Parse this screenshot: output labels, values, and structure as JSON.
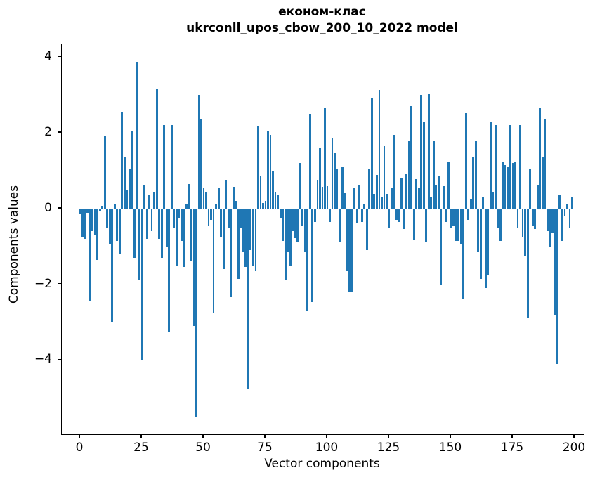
{
  "figure": {
    "title_line1": "економ-клас",
    "title_line2": "ukrconll_upos_cbow_200_10_2022 model",
    "xlabel": "Vector components",
    "ylabel": "Components values",
    "bar_color": "#1f77b4",
    "axis_color": "#000000"
  },
  "chart_data": {
    "type": "bar",
    "title": "економ-клас",
    "subtitle": "ukrconll_upos_cbow_200_10_2022 model",
    "xlabel": "Vector components",
    "ylabel": "Components values",
    "legend": null,
    "grid": false,
    "n_components": 200,
    "x_ticks": [
      0,
      25,
      50,
      75,
      100,
      125,
      150,
      175,
      200
    ],
    "y_ticks": [
      4,
      2,
      0,
      -2,
      -4
    ],
    "xlim": [
      -7.39,
      203.69
    ],
    "ylim": [
      -5.96,
      4.34
    ],
    "bar_width_units": 0.8,
    "values": [
      -0.15,
      -0.75,
      -0.8,
      -0.12,
      -2.45,
      -0.6,
      -0.7,
      -1.35,
      -0.08,
      0.07,
      1.9,
      -0.5,
      -0.95,
      -3.0,
      0.12,
      -0.85,
      -1.2,
      2.55,
      1.35,
      0.5,
      1.05,
      2.05,
      -1.3,
      3.87,
      -1.9,
      -4.0,
      0.62,
      -0.8,
      0.35,
      -0.6,
      0.45,
      3.15,
      -0.8,
      -1.3,
      2.2,
      -1.0,
      -3.25,
      2.2,
      -0.5,
      -1.5,
      -0.25,
      -0.85,
      -1.55,
      0.1,
      0.65,
      -1.4,
      -3.1,
      -5.5,
      3.0,
      2.35,
      0.55,
      0.45,
      -0.45,
      -0.3,
      -2.75,
      0.1,
      0.55,
      -0.75,
      -1.6,
      0.76,
      -0.5,
      -2.35,
      0.58,
      0.21,
      -1.85,
      -0.5,
      -1.16,
      -1.54,
      -4.75,
      -1.1,
      -1.5,
      -1.65,
      2.17,
      0.85,
      0.15,
      0.2,
      2.05,
      1.95,
      1.0,
      0.45,
      0.35,
      -0.25,
      -0.85,
      -1.9,
      -1.15,
      -1.5,
      -0.6,
      -0.78,
      -0.9,
      1.2,
      -0.45,
      -1.15,
      -2.7,
      2.5,
      -2.48,
      -0.35,
      0.76,
      1.62,
      0.57,
      2.65,
      0.6,
      -0.35,
      1.85,
      1.47,
      1.05,
      -0.9,
      1.1,
      0.42,
      -1.65,
      -2.2,
      -2.2,
      0.55,
      -0.4,
      0.62,
      -0.35,
      0.1,
      -1.1,
      1.05,
      2.92,
      0.38,
      0.88,
      3.14,
      0.32,
      1.65,
      0.38,
      -0.5,
      0.55,
      1.95,
      -0.3,
      -0.35,
      0.8,
      -0.55,
      0.92,
      1.8,
      2.7,
      -0.83,
      0.78,
      0.55,
      3.0,
      2.3,
      -0.88,
      3.02,
      0.3,
      1.78,
      0.62,
      0.85,
      -2.03,
      0.6,
      -0.35,
      1.25,
      -0.5,
      -0.45,
      -0.85,
      -0.85,
      -0.95,
      -2.38,
      2.52,
      -0.3,
      0.25,
      1.35,
      1.78,
      -1.15,
      -1.85,
      0.3,
      -2.1,
      -1.75,
      2.28,
      0.45,
      2.2,
      -0.5,
      -0.85,
      1.22,
      1.15,
      1.1,
      2.2,
      1.2,
      1.25,
      -0.5,
      2.2,
      -0.75,
      -1.25,
      -2.9,
      1.05,
      -0.45,
      -0.55,
      0.62,
      2.65,
      1.35,
      2.35,
      -0.6,
      -1.0,
      -0.65,
      -2.8,
      -4.1,
      0.35,
      -0.85,
      -0.2,
      0.12,
      -0.5,
      0.3
    ]
  }
}
